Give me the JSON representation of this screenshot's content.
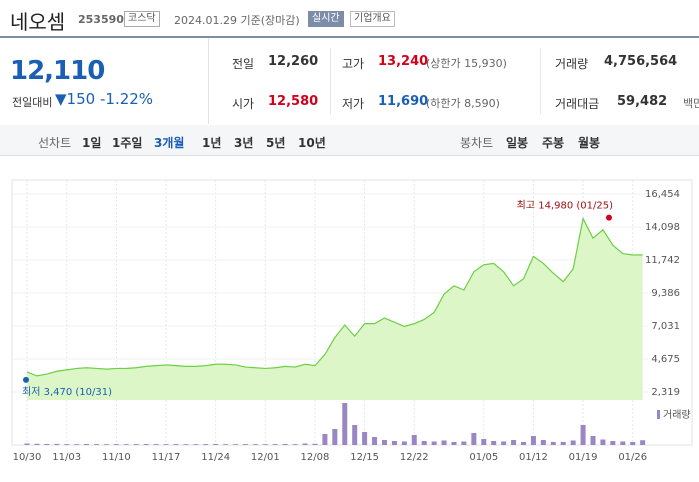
{
  "header": {
    "name": "네오셈",
    "code": "253590",
    "market": "코스닥",
    "date": "2024.01.29 기준(장마감)",
    "realtime": "실시간",
    "company": "기업개요"
  },
  "quote": {
    "price": "12,110",
    "change_label": "전일대비",
    "change": "150",
    "change_pct": "-1.22%",
    "items": [
      {
        "label": "전일",
        "value": "12,260"
      },
      {
        "label": "고가",
        "value": "13,240",
        "extra": "(상한가 15,930)"
      },
      {
        "label": "거래량",
        "value": "4,756,564"
      },
      {
        "label": "시가",
        "value": "12,580"
      },
      {
        "label": "저가",
        "value": "11,690",
        "extra": "(하한가 8,590)"
      },
      {
        "label": "거래대금",
        "value": "59,482",
        "unit": "백만"
      }
    ]
  },
  "tabs": {
    "line_label": "선차트",
    "line": [
      "1일",
      "1주일",
      "3개월",
      "1년",
      "3년",
      "5년",
      "10년"
    ],
    "selected": "3개월",
    "candle_label": "봉차트",
    "candle": [
      "일봉",
      "주봉",
      "월봉"
    ]
  },
  "chart_data": {
    "type": "area",
    "color": "#6ccf45",
    "fill": "#dcf6c8",
    "categories": [
      "10/30",
      null,
      null,
      null,
      "11/03",
      null,
      null,
      null,
      null,
      "11/10",
      null,
      null,
      null,
      null,
      "11/17",
      null,
      null,
      null,
      null,
      "11/24",
      null,
      null,
      null,
      null,
      "12/01",
      null,
      null,
      null,
      null,
      "12/08",
      null,
      null,
      null,
      null,
      "12/15",
      null,
      null,
      null,
      null,
      "12/22",
      null,
      null,
      null,
      null,
      null,
      null,
      "01/05",
      null,
      null,
      null,
      null,
      "01/12",
      null,
      null,
      null,
      null,
      "01/19",
      null,
      null,
      null,
      null,
      "01/26",
      null
    ],
    "values": [
      3750,
      3470,
      3600,
      3800,
      3900,
      4000,
      4050,
      4000,
      3950,
      4000,
      4000,
      4050,
      4150,
      4200,
      4250,
      4200,
      4150,
      4150,
      4200,
      4300,
      4300,
      4250,
      4100,
      4050,
      4000,
      4050,
      4150,
      4100,
      4300,
      4200,
      5000,
      6200,
      7100,
      6300,
      7200,
      7200,
      7600,
      7300,
      7000,
      7200,
      7500,
      8000,
      9300,
      9900,
      9600,
      10900,
      11400,
      11500,
      10900,
      9900,
      10400,
      12000,
      11500,
      10800,
      10200,
      11100,
      14700,
      13300,
      13900,
      12800,
      12200,
      12100,
      12110
    ],
    "ylim": [
      1748,
      17097
    ],
    "yticks": [
      {
        "value": 2319,
        "label": "2,319"
      },
      {
        "value": 4675,
        "label": "4,675"
      },
      {
        "value": 7031,
        "label": "7,031"
      },
      {
        "value": 9386,
        "label": "9,386"
      },
      {
        "value": 11742,
        "label": "11,742"
      },
      {
        "value": 14098,
        "label": "14,098"
      },
      {
        "value": 16454,
        "label": "16,454"
      }
    ],
    "high": {
      "value": 14980,
      "label": "최고 14,980 (01/25)"
    },
    "low": {
      "value": 3470,
      "label": "최저 3,470 (10/31)"
    },
    "volume": {
      "name": "거래량",
      "color": "#9a86c2",
      "ylim": [
        0,
        45000000
      ],
      "values": [
        1500000,
        1200000,
        1000000,
        1100000,
        900000,
        800000,
        1000000,
        900000,
        800000,
        900000,
        800000,
        900000,
        1000000,
        900000,
        800000,
        900000,
        800000,
        800000,
        900000,
        1000000,
        800000,
        800000,
        900000,
        800000,
        800000,
        900000,
        1000000,
        800000,
        1500000,
        1200000,
        11000000,
        16000000,
        42000000,
        20000000,
        13000000,
        8000000,
        5000000,
        4000000,
        3500000,
        10000000,
        4000000,
        3500000,
        4500000,
        3000000,
        3500000,
        12000000,
        6000000,
        4000000,
        3500000,
        5000000,
        3000000,
        9000000,
        5000000,
        3000000,
        3000000,
        4500000,
        20000000,
        9000000,
        5500000,
        4000000,
        3500000,
        3000000,
        4756564
      ]
    }
  }
}
